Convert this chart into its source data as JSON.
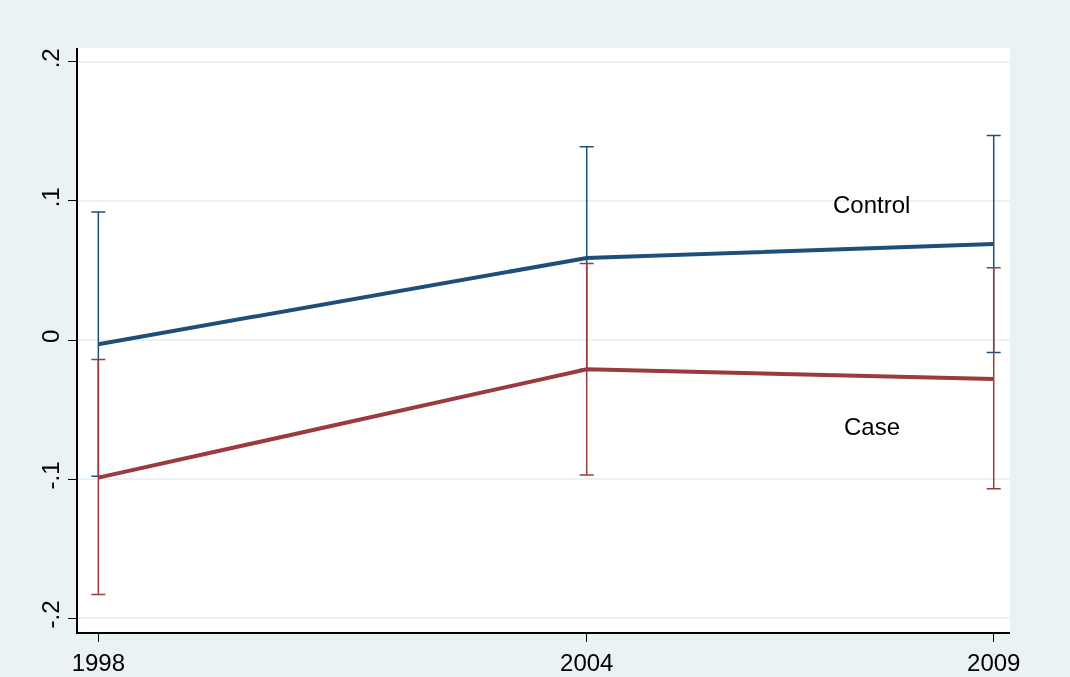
{
  "chart_data": {
    "type": "line",
    "x": [
      1998,
      2004,
      2009
    ],
    "series": [
      {
        "name": "Control",
        "color": "#1f4e79",
        "values": [
          -0.003,
          0.059,
          0.069
        ],
        "errors": [
          [
            -0.098,
            0.092
          ],
          [
            -0.021,
            0.139
          ],
          [
            -0.009,
            0.147
          ]
        ]
      },
      {
        "name": "Case",
        "color": "#9b3a3f",
        "values": [
          -0.099,
          -0.021,
          -0.028
        ],
        "errors": [
          [
            -0.183,
            -0.014
          ],
          [
            -0.097,
            0.055
          ],
          [
            -0.107,
            0.052
          ]
        ]
      }
    ],
    "xlim": [
      1997.75,
      2009.2
    ],
    "xticks": [
      1998,
      2004,
      2009
    ],
    "ylim": [
      -0.21,
      0.21
    ],
    "yticks": [
      {
        "value": -0.2,
        "label": "-.2"
      },
      {
        "value": -0.1,
        "label": "-.1"
      },
      0,
      {
        "value": 0.1,
        "label": ".1"
      },
      {
        "value": 0.2,
        "label": ".2"
      }
    ],
    "grid": "y",
    "legend": false,
    "marker": "none",
    "line_style": "solid"
  }
}
